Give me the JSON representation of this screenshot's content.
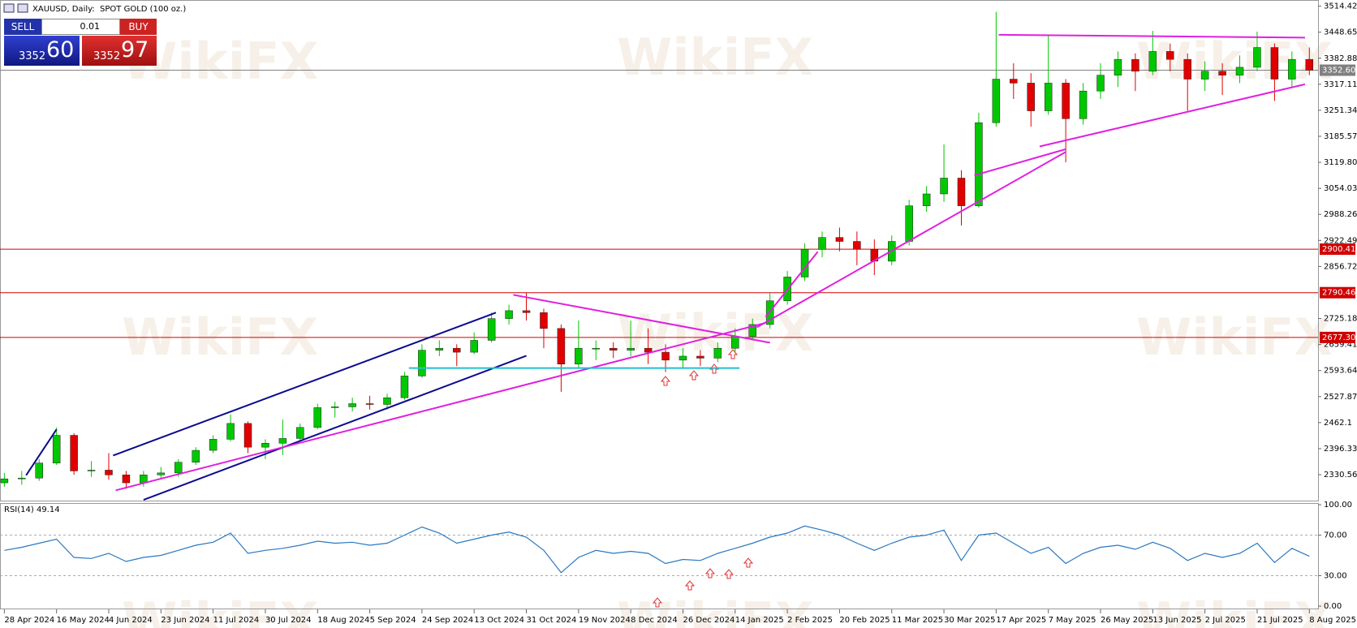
{
  "chart_data": {
    "type": "candlestick",
    "title": "XAUUSD, Daily:  SPOT GOLD (100 oz.)",
    "open": [
      2310,
      2320,
      2322,
      2360,
      2430,
      2340,
      2342,
      2330,
      2310,
      2330,
      2335,
      2362,
      2392,
      2420,
      2460,
      2400,
      2410,
      2422,
      2450,
      2500,
      2502,
      2510,
      2508,
      2525,
      2580,
      2645,
      2650,
      2640,
      2670,
      2725,
      2745,
      2740,
      2700,
      2610,
      2650,
      2650,
      2645,
      2650,
      2640,
      2620,
      2630,
      2625,
      2650,
      2680,
      2710,
      2770,
      2830,
      2900,
      2930,
      2920,
      2900,
      2870,
      2920,
      3010,
      3040,
      3080,
      3010,
      3220,
      3330,
      3320,
      3250,
      3320,
      3230,
      3300,
      3340,
      3380,
      3350,
      3400,
      3380,
      3330,
      3350,
      3340,
      3360,
      3410,
      3330,
      3380
    ],
    "high": [
      2335,
      2340,
      2370,
      2450,
      2435,
      2365,
      2385,
      2340,
      2340,
      2350,
      2370,
      2400,
      2430,
      2483,
      2465,
      2420,
      2470,
      2460,
      2510,
      2515,
      2525,
      2530,
      2535,
      2590,
      2660,
      2670,
      2660,
      2690,
      2740,
      2760,
      2790,
      2750,
      2710,
      2720,
      2670,
      2665,
      2720,
      2700,
      2660,
      2650,
      2645,
      2665,
      2700,
      2725,
      2790,
      2845,
      2915,
      2945,
      2955,
      2945,
      2925,
      2935,
      3025,
      3060,
      3165,
      3100,
      3245,
      3500,
      3370,
      3345,
      3440,
      3330,
      3320,
      3370,
      3400,
      3395,
      3452,
      3420,
      3395,
      3375,
      3370,
      3390,
      3450,
      3420,
      3400,
      3410
    ],
    "low": [
      2300,
      2305,
      2315,
      2355,
      2330,
      2325,
      2318,
      2295,
      2300,
      2320,
      2325,
      2355,
      2385,
      2415,
      2385,
      2370,
      2380,
      2415,
      2445,
      2475,
      2490,
      2495,
      2495,
      2520,
      2575,
      2630,
      2605,
      2635,
      2665,
      2710,
      2720,
      2650,
      2540,
      2600,
      2620,
      2625,
      2630,
      2610,
      2590,
      2600,
      2605,
      2615,
      2640,
      2670,
      2700,
      2760,
      2820,
      2880,
      2895,
      2860,
      2835,
      2860,
      2910,
      2995,
      3020,
      2960,
      3005,
      3210,
      3280,
      3210,
      3240,
      3120,
      3215,
      3280,
      3310,
      3300,
      3340,
      3350,
      3250,
      3300,
      3290,
      3320,
      3350,
      3275,
      3310,
      3340
    ],
    "close": [
      2320,
      2322,
      2360,
      2430,
      2340,
      2342,
      2330,
      2310,
      2330,
      2335,
      2362,
      2392,
      2420,
      2460,
      2400,
      2410,
      2422,
      2450,
      2500,
      2502,
      2510,
      2508,
      2525,
      2580,
      2645,
      2650,
      2640,
      2670,
      2725,
      2745,
      2740,
      2700,
      2610,
      2650,
      2650,
      2645,
      2650,
      2640,
      2620,
      2630,
      2625,
      2650,
      2680,
      2710,
      2770,
      2830,
      2900,
      2930,
      2920,
      2900,
      2870,
      2920,
      3010,
      3040,
      3080,
      3010,
      3220,
      3330,
      3320,
      3250,
      3320,
      3230,
      3300,
      3340,
      3380,
      3350,
      3400,
      3380,
      3330,
      3350,
      3340,
      3360,
      3410,
      3330,
      3380,
      3352.6
    ],
    "up_color": "#00c800",
    "down_color": "#e00000",
    "xlim": [
      -0.25,
      75.5
    ],
    "xticks": [
      {
        "value": 0,
        "label": "28 Apr 2024"
      },
      {
        "value": 3,
        "label": "16 May 2024"
      },
      {
        "value": 6,
        "label": "4 Jun 2024"
      },
      {
        "value": 9,
        "label": "23 Jun 2024"
      },
      {
        "value": 12,
        "label": "11 Jul 2024"
      },
      {
        "value": 15,
        "label": "30 Jul 2024"
      },
      {
        "value": 18,
        "label": "18 Aug 2024"
      },
      {
        "value": 21,
        "label": "5 Sep 2024"
      },
      {
        "value": 24,
        "label": "24 Sep 2024"
      },
      {
        "value": 27,
        "label": "13 Oct 2024"
      },
      {
        "value": 30,
        "label": "31 Oct 2024"
      },
      {
        "value": 33,
        "label": "19 Nov 2024"
      },
      {
        "value": 36,
        "label": "8 Dec 2024"
      },
      {
        "value": 39,
        "label": "26 Dec 2024"
      },
      {
        "value": 42,
        "label": "14 Jan 2025"
      },
      {
        "value": 45,
        "label": "2 Feb 2025"
      },
      {
        "value": 48,
        "label": "20 Feb 2025"
      },
      {
        "value": 51,
        "label": "11 Mar 2025"
      },
      {
        "value": 54,
        "label": "30 Mar 2025"
      },
      {
        "value": 57,
        "label": "17 Apr 2025"
      },
      {
        "value": 60,
        "label": "7 May 2025"
      },
      {
        "value": 63,
        "label": "26 May 2025"
      },
      {
        "value": 66,
        "label": "13 Jun 2025"
      },
      {
        "value": 69,
        "label": "2 Jul 2025"
      },
      {
        "value": 72,
        "label": "21 Jul 2025"
      },
      {
        "value": 75,
        "label": "8 Aug 2025"
      }
    ],
    "ylim": [
      2265,
      3530
    ],
    "yticks": [
      3514.42,
      3448.65,
      3382.88,
      3317.11,
      3251.34,
      3185.57,
      {
        "value": 3119.8,
        "label": "3119.80"
      },
      3054.03,
      2988.26,
      2922.49,
      2856.72,
      2725.18,
      2659.41,
      2593.64,
      2527.87,
      2462.1,
      2396.33,
      2330.56
    ],
    "levels": [
      {
        "value": 2900.41,
        "color": "#d00000"
      },
      {
        "value": 2790.46,
        "color": "#d00000"
      },
      {
        "value": 2677.3,
        "label": "2677.30",
        "color": "#d00000"
      }
    ],
    "current_price": {
      "value": 3352.6,
      "label": "3352.60",
      "color": "#808080"
    },
    "trendlines": [
      {
        "color": "#0a0a90",
        "x": [
          6.25,
          28.25
        ],
        "y": [
          2379,
          2740
        ]
      },
      {
        "color": "#0a0a90",
        "x": [
          8,
          30
        ],
        "y": [
          2267,
          2631
        ]
      },
      {
        "color": "#0a0a90",
        "x": [
          1.25,
          3
        ],
        "y": [
          2329,
          2445
        ]
      },
      {
        "color": "#e020e0",
        "x": [
          6.4,
          43.75
        ],
        "y": [
          2291,
          2714
        ]
      },
      {
        "color": "#e020e0",
        "x": [
          29.25,
          44
        ],
        "y": [
          2785,
          2664
        ]
      },
      {
        "color": "#20c0d0",
        "x": [
          23.25,
          42.25
        ],
        "y": [
          2600,
          2600
        ]
      },
      {
        "color": "#e020e0",
        "x": [
          43.25,
          61
        ],
        "y": [
          2703,
          3146
        ]
      },
      {
        "color": "#e020e0",
        "x": [
          43.75,
          46.75
        ],
        "y": [
          2729,
          2894
        ]
      },
      {
        "color": "#e020e0",
        "x": [
          55.75,
          61
        ],
        "y": [
          3087,
          3153
        ]
      },
      {
        "color": "#e020e0",
        "x": [
          59.5,
          74.75
        ],
        "y": [
          3160,
          3317
        ]
      },
      {
        "color": "#e020e0",
        "x": [
          57.15,
          74.75
        ],
        "y": [
          3442,
          3435
        ]
      }
    ],
    "rsi": {
      "title": "RSI(14) 49.14",
      "color": "#2a78c0",
      "values": [
        55,
        58,
        62,
        66,
        48,
        47,
        52,
        44,
        48,
        50,
        55,
        60,
        63,
        72,
        52,
        55,
        57,
        60,
        64,
        62,
        63,
        60,
        62,
        70,
        78,
        72,
        62,
        66,
        70,
        73,
        68,
        55,
        33,
        48,
        55,
        52,
        54,
        52,
        42,
        46,
        45,
        52,
        57,
        62,
        68,
        72,
        79,
        75,
        70,
        62,
        55,
        62,
        68,
        70,
        75,
        45,
        70,
        72,
        62,
        52,
        58,
        42,
        52,
        58,
        60,
        56,
        63,
        57,
        45,
        52,
        48,
        52,
        62,
        43,
        57,
        49.14
      ],
      "ylim": [
        0,
        100
      ],
      "yticks": [
        {
          "value": 100,
          "label": "100.00"
        },
        {
          "value": 70,
          "label": "70.00"
        },
        {
          "value": 30,
          "label": "30.00"
        },
        {
          "value": 0,
          "label": "0.00"
        }
      ]
    }
  },
  "trade_panel": {
    "sell": "SELL",
    "buy": "BUY",
    "lot": "0.01",
    "sell_big": "3352",
    "sell_small": "60",
    "buy_big": "3352",
    "buy_small": "97"
  },
  "watermark": "WikiFX"
}
